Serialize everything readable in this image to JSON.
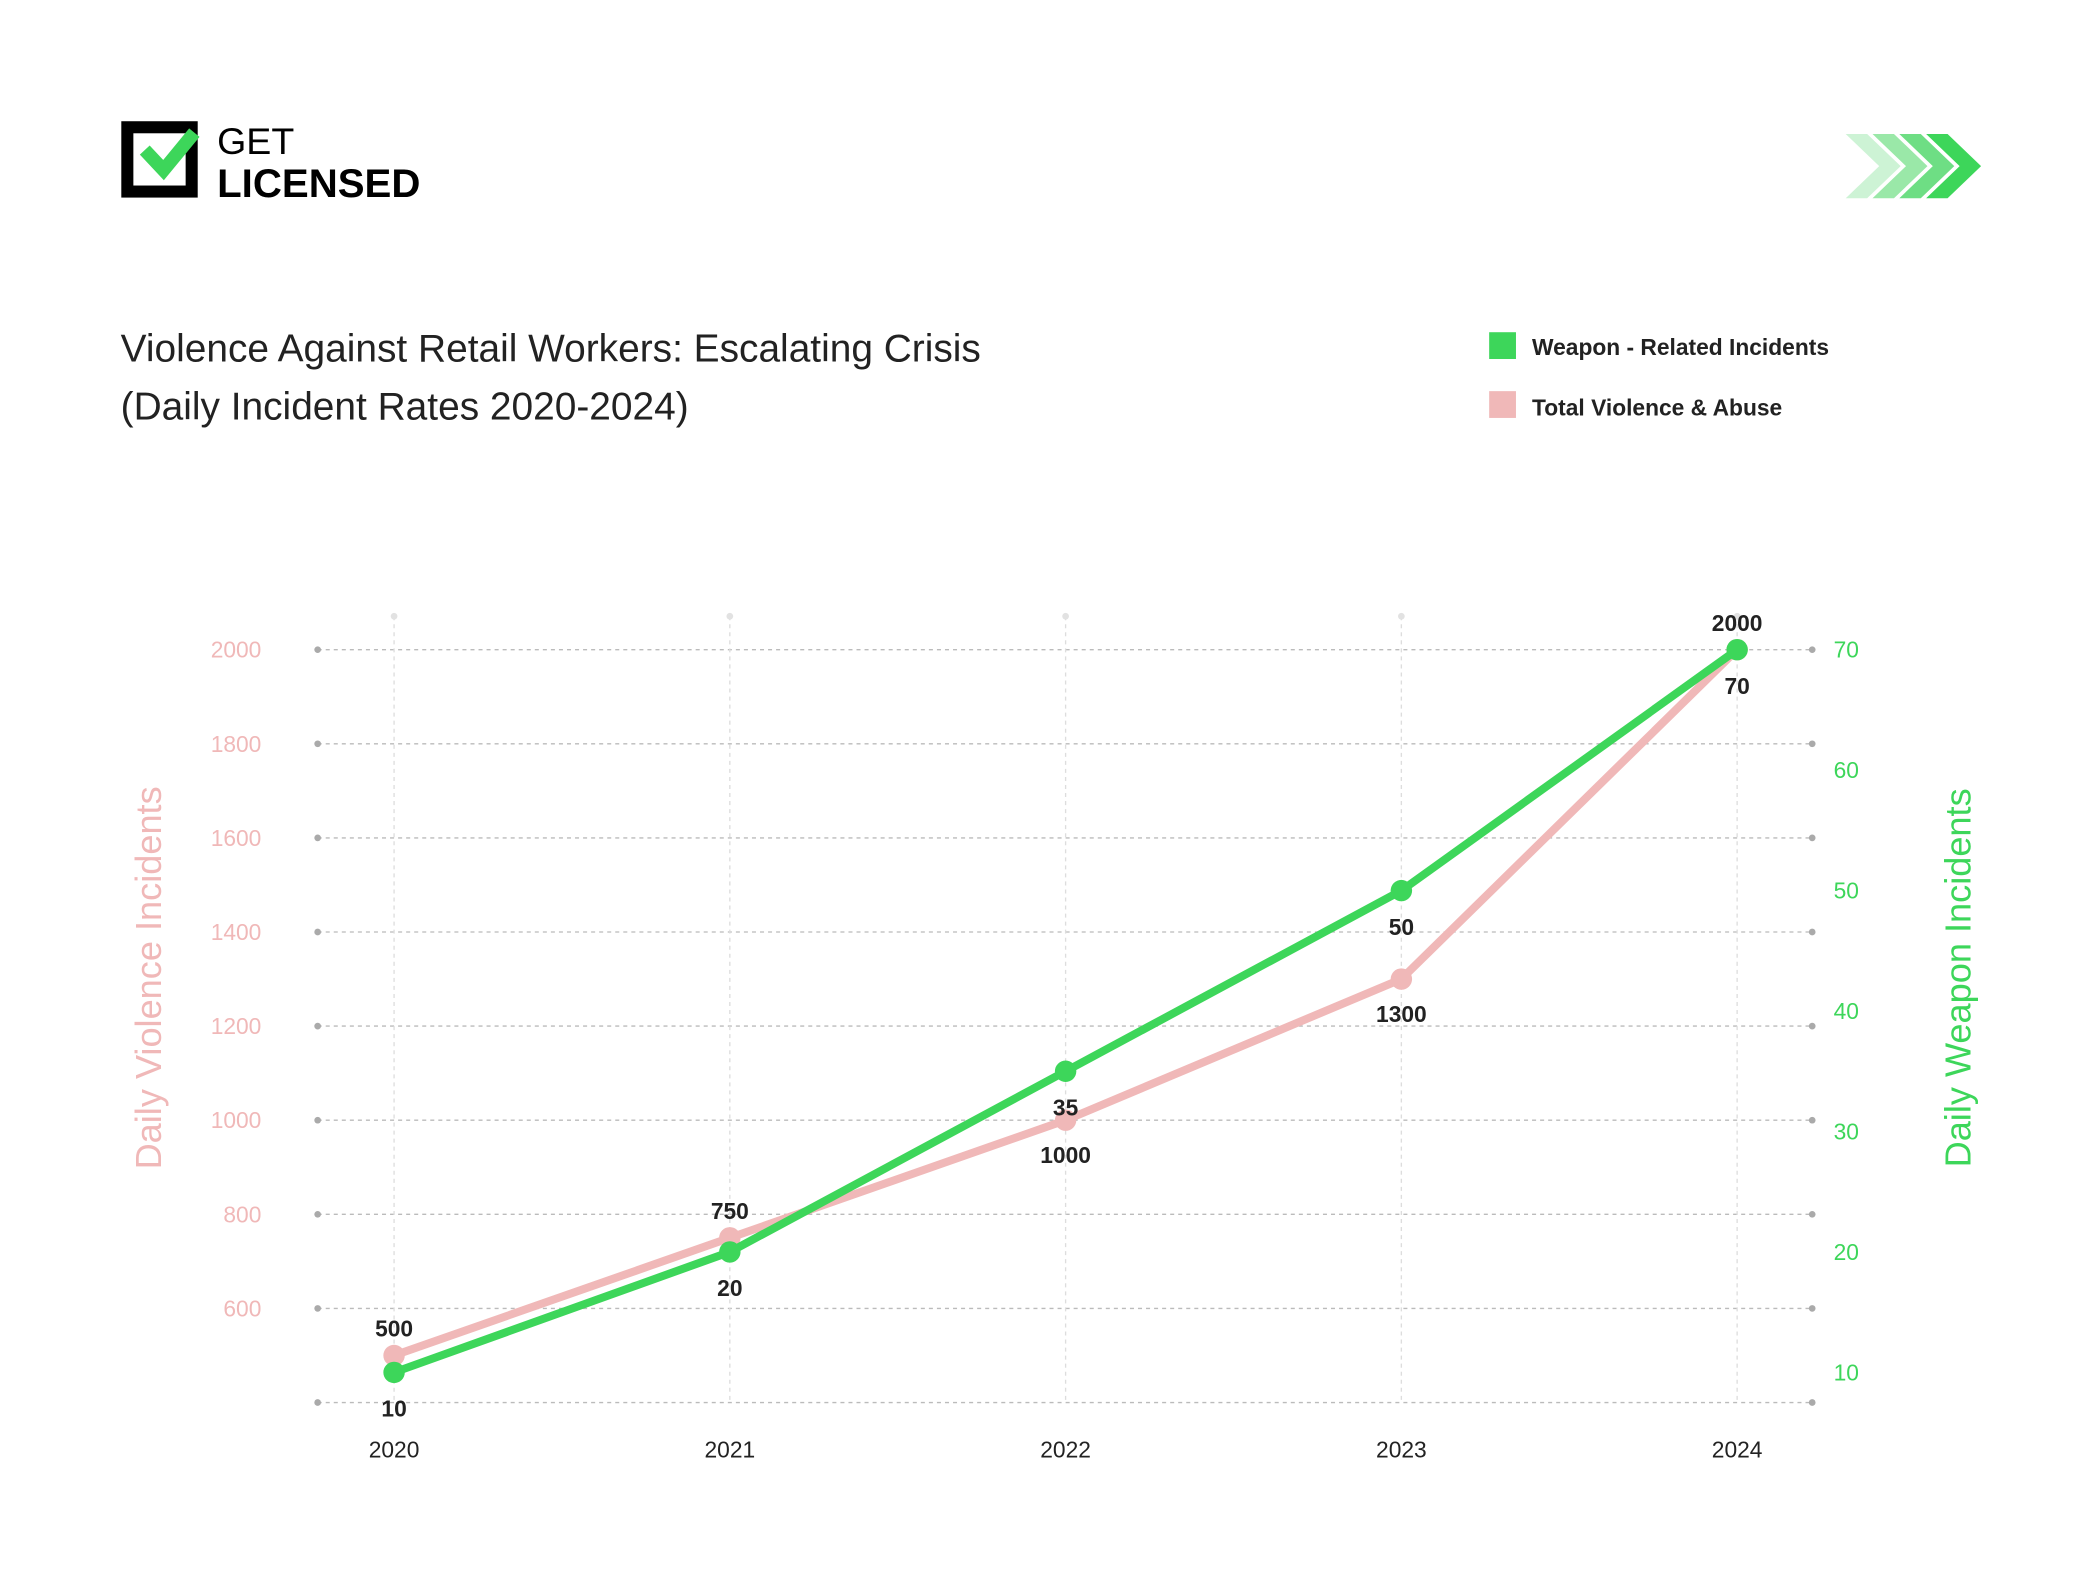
{
  "logo": {
    "line1": "GET",
    "line2": "LICENSED"
  },
  "colors": {
    "weapon": "#3dd65a",
    "violence": "#f0b8b8",
    "text": "#222222",
    "grid": "#bbbbbb"
  },
  "decor": {
    "icon": "chevrons-right-icon"
  },
  "chart_data": {
    "type": "line",
    "title": [
      "Violence Against Retail Workers: Escalating Crisis",
      "(Daily Incident Rates 2020-2024)"
    ],
    "categories": [
      "2020",
      "2021",
      "2022",
      "2023",
      "2024"
    ],
    "legend_position": "top-right",
    "grid": true,
    "y_left": {
      "label": "Daily Violence Incidents",
      "range": [
        400,
        2000
      ],
      "ticks": [
        600,
        800,
        1000,
        1200,
        1400,
        1600,
        1800,
        2000
      ]
    },
    "y_right": {
      "label": "Daily Weapon Incidents",
      "range": [
        7.5,
        70
      ],
      "ticks": [
        10,
        20,
        30,
        40,
        50,
        60,
        70
      ]
    },
    "series": [
      {
        "name": "Weapon - Related Incidents",
        "axis": "right",
        "color": "#3dd65a",
        "values": [
          10,
          20,
          35,
          50,
          70
        ]
      },
      {
        "name": "Total Violence & Abuse",
        "axis": "left",
        "color": "#f0b8b8",
        "values": [
          500,
          750,
          1000,
          1300,
          2000
        ]
      }
    ]
  }
}
